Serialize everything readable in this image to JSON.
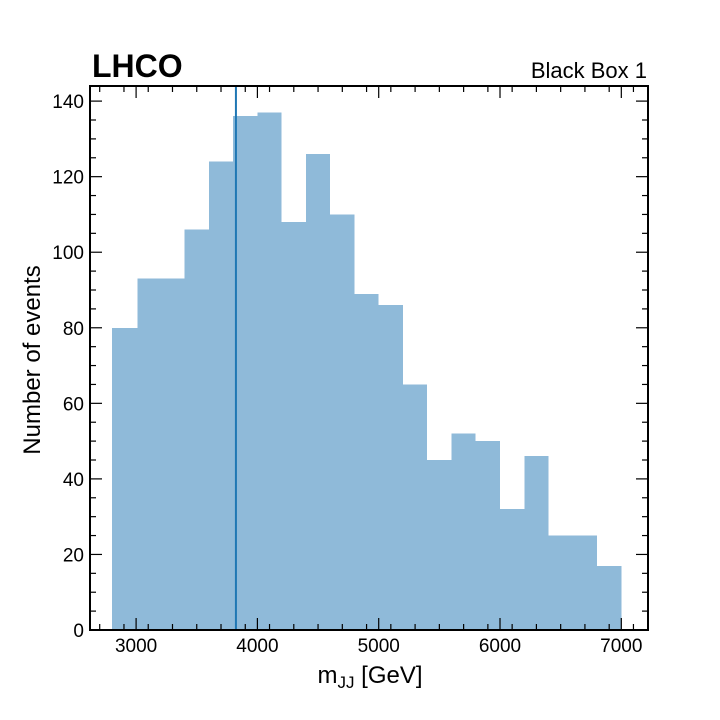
{
  "chart_data": {
    "type": "bar",
    "experiment_label": "LHCO",
    "dataset_label": "Black Box 1",
    "xlabel_main": "m",
    "xlabel_sub": "JJ",
    "xlabel_unit": " [GeV]",
    "ylabel": "Number of events",
    "xlim": [
      2620,
      7220
    ],
    "ylim": [
      0,
      144
    ],
    "x_ticks": [
      3000,
      4000,
      5000,
      6000,
      7000
    ],
    "y_ticks": [
      0,
      20,
      40,
      60,
      80,
      100,
      120,
      140
    ],
    "bins": [
      {
        "x0": 2800,
        "x1": 3010,
        "count": 80
      },
      {
        "x0": 3010,
        "x1": 3200,
        "count": 93
      },
      {
        "x0": 3200,
        "x1": 3400,
        "count": 93
      },
      {
        "x0": 3400,
        "x1": 3600,
        "count": 106
      },
      {
        "x0": 3600,
        "x1": 3800,
        "count": 124
      },
      {
        "x0": 3800,
        "x1": 4000,
        "count": 136
      },
      {
        "x0": 4000,
        "x1": 4200,
        "count": 137
      },
      {
        "x0": 4200,
        "x1": 4400,
        "count": 108
      },
      {
        "x0": 4400,
        "x1": 4600,
        "count": 126
      },
      {
        "x0": 4600,
        "x1": 4800,
        "count": 110
      },
      {
        "x0": 4800,
        "x1": 5000,
        "count": 89
      },
      {
        "x0": 5000,
        "x1": 5200,
        "count": 86
      },
      {
        "x0": 5200,
        "x1": 5400,
        "count": 65
      },
      {
        "x0": 5400,
        "x1": 5600,
        "count": 45
      },
      {
        "x0": 5600,
        "x1": 5800,
        "count": 52
      },
      {
        "x0": 5800,
        "x1": 6000,
        "count": 50
      },
      {
        "x0": 6000,
        "x1": 6200,
        "count": 32
      },
      {
        "x0": 6200,
        "x1": 6400,
        "count": 46
      },
      {
        "x0": 6400,
        "x1": 6800,
        "count": 25
      },
      {
        "x0": 6800,
        "x1": 7000,
        "count": 17
      }
    ],
    "vline_x": 3823,
    "bar_color": "#8fbad9",
    "vline_color": "#1f77b4",
    "grid": false,
    "legend": "none"
  }
}
